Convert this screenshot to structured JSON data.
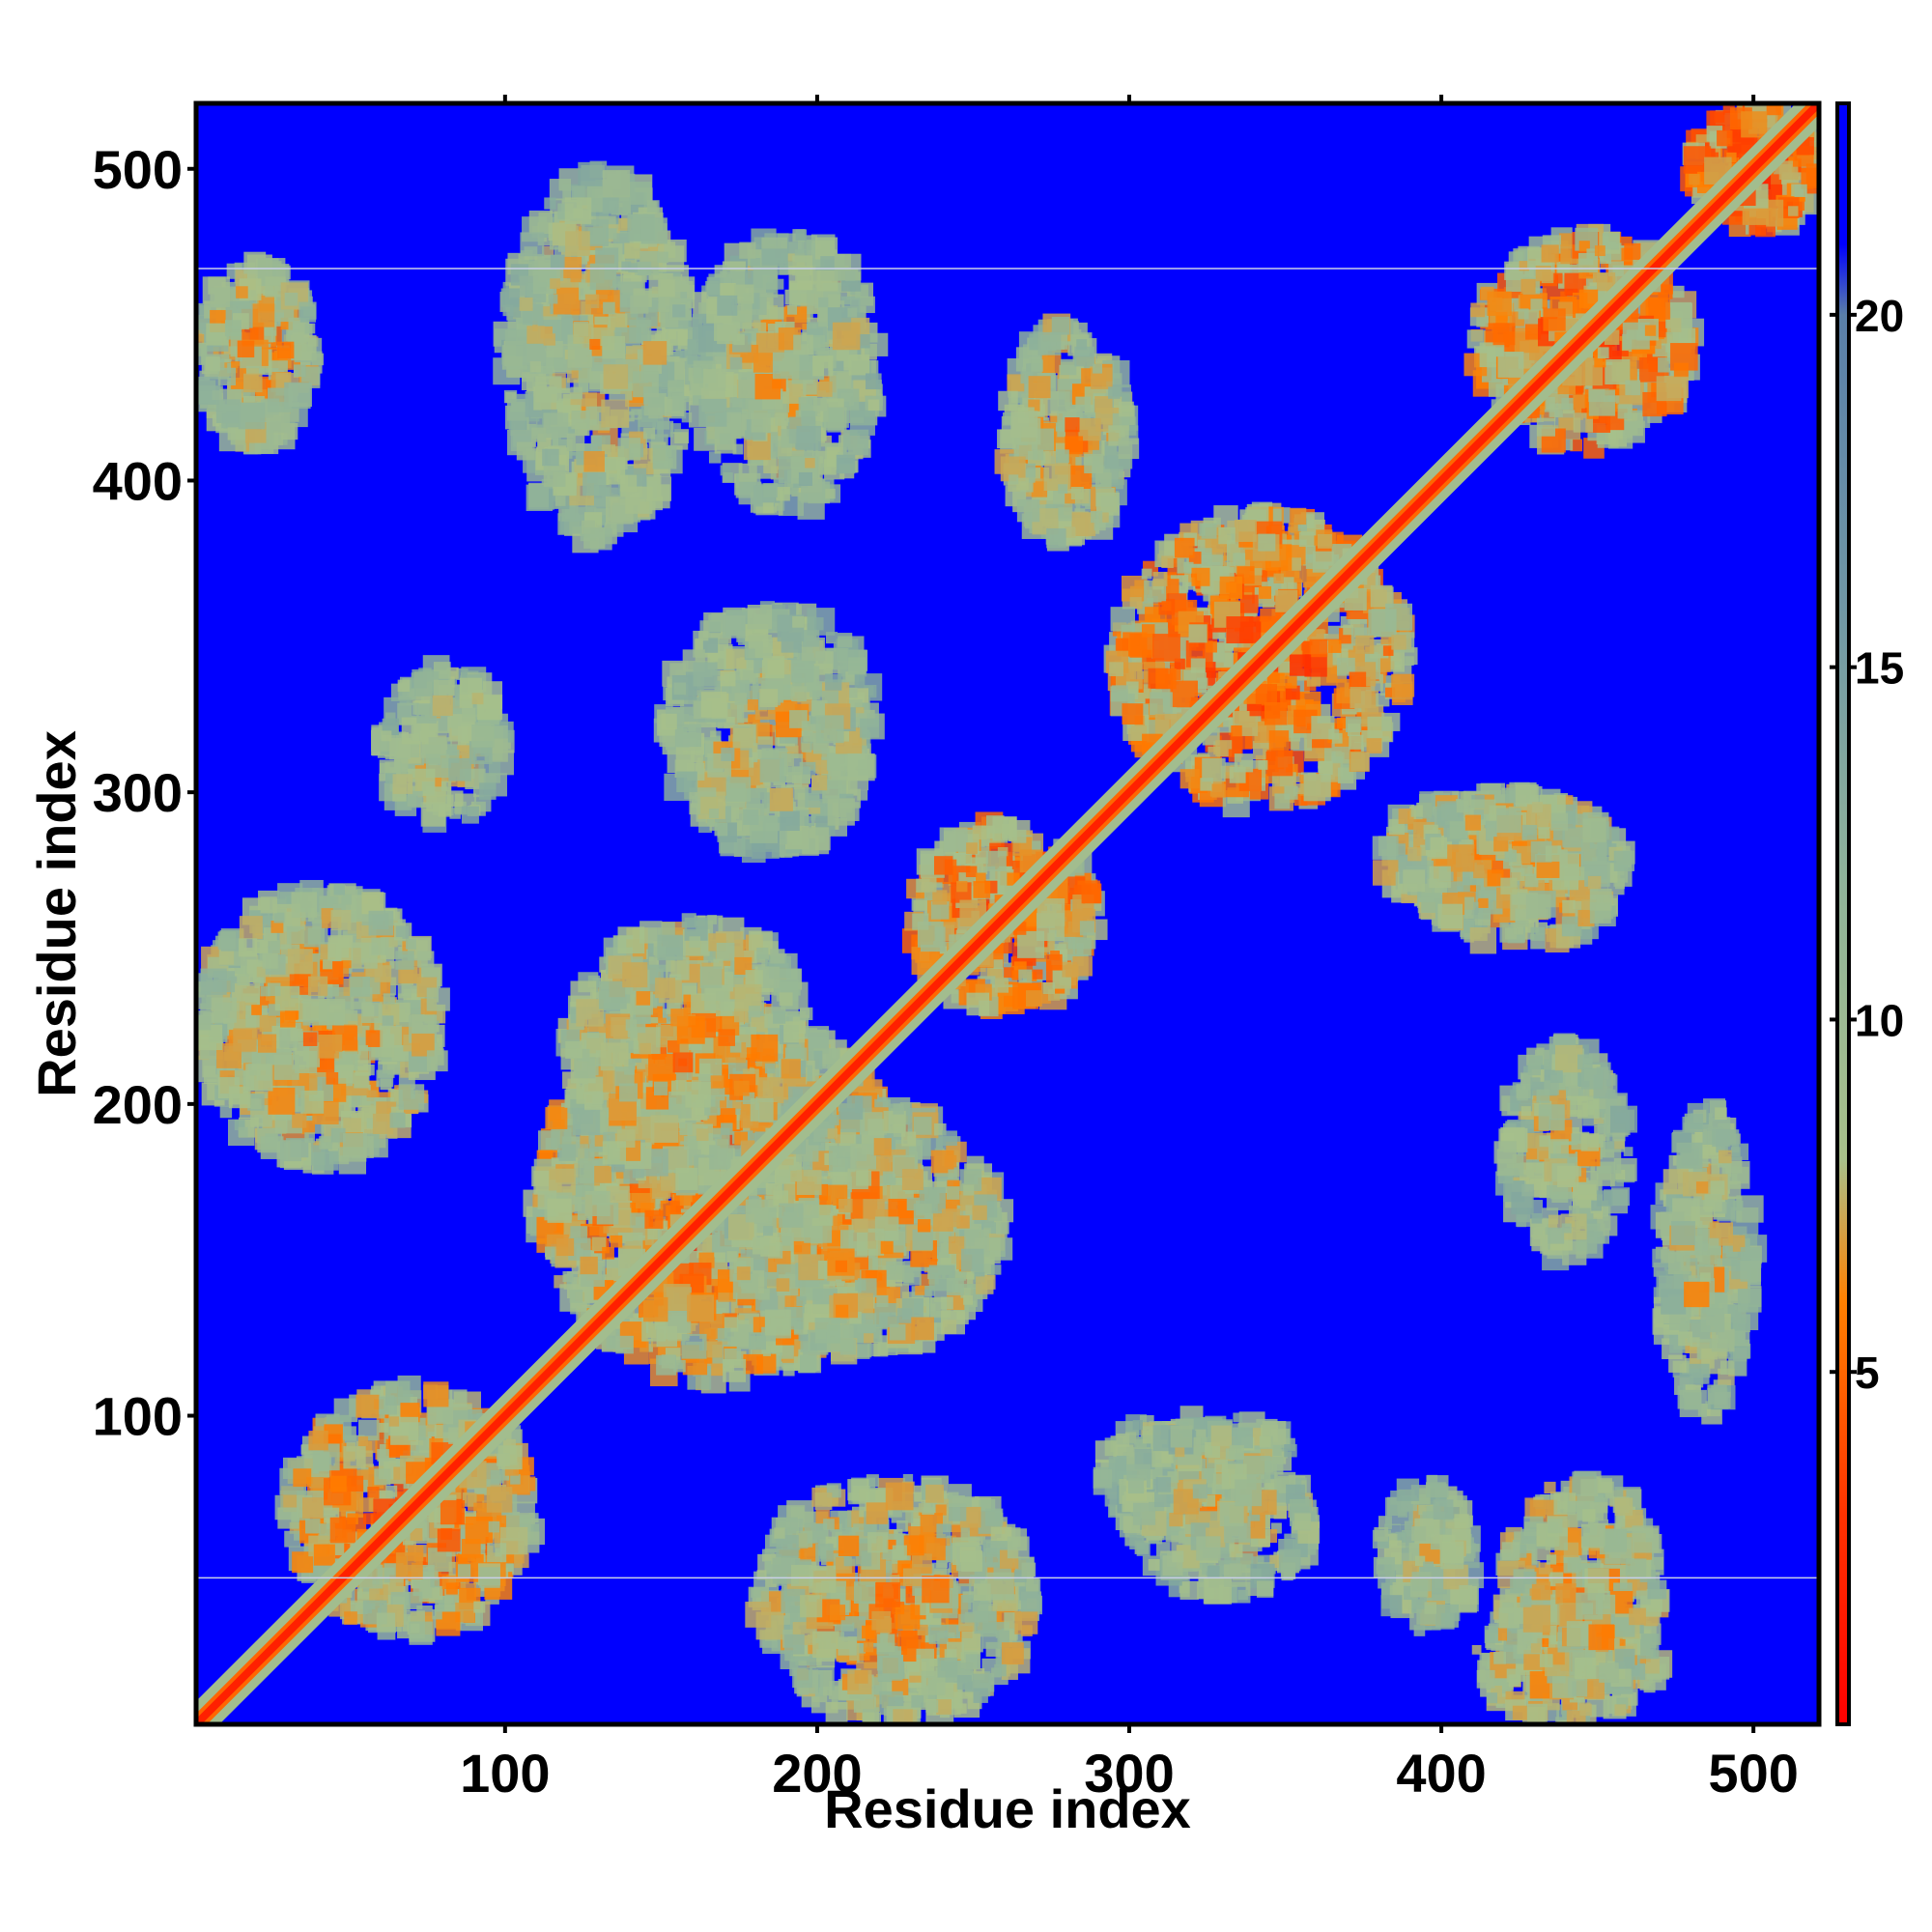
{
  "chart_data": {
    "type": "heatmap",
    "title": "",
    "xlabel": "Residue index",
    "ylabel": "Residue index",
    "xlim": [
      1,
      521
    ],
    "ylim": [
      1,
      521
    ],
    "x_ticks": [
      100,
      200,
      300,
      400,
      500
    ],
    "y_ticks": [
      100,
      200,
      300,
      400,
      500
    ],
    "colorbar": {
      "ticks": [
        5,
        10,
        15,
        20
      ],
      "range": [
        0,
        23
      ],
      "colors": [
        {
          "value": 0,
          "color": "#ff0000"
        },
        {
          "value": 3,
          "color": "#ff3300"
        },
        {
          "value": 6,
          "color": "#ff8000"
        },
        {
          "value": 8,
          "color": "#a8c08a"
        },
        {
          "value": 12,
          "color": "#8fb29a"
        },
        {
          "value": 16,
          "color": "#6f96a6"
        },
        {
          "value": 20,
          "color": "#5a7fa8"
        },
        {
          "value": 21,
          "color": "#0000ff"
        },
        {
          "value": 23,
          "color": "#0000ff"
        }
      ]
    },
    "background_color": "#0000ff",
    "diagonal_color": "#ff2000",
    "contact_regions": [
      {
        "x": [
          30,
          110
        ],
        "y": [
          30,
          110
        ],
        "value": 9
      },
      {
        "x": [
          110,
          230
        ],
        "y": [
          110,
          230
        ],
        "value": 9
      },
      {
        "x": [
          230,
          290
        ],
        "y": [
          230,
          290
        ],
        "value": 8
      },
      {
        "x": [
          295,
          390
        ],
        "y": [
          295,
          390
        ],
        "value": 8
      },
      {
        "x": [
          410,
          480
        ],
        "y": [
          410,
          480
        ],
        "value": 8
      },
      {
        "x": [
          480,
          521
        ],
        "y": [
          480,
          521
        ],
        "value": 7
      },
      {
        "x": [
          120,
          200
        ],
        "y": [
          170,
          260
        ],
        "value": 10
      },
      {
        "x": [
          170,
          260
        ],
        "y": [
          120,
          200
        ],
        "value": 10
      },
      {
        "x": [
          1,
          80
        ],
        "y": [
          180,
          270
        ],
        "value": 10
      },
      {
        "x": [
          180,
          270
        ],
        "y": [
          1,
          80
        ],
        "value": 10
      },
      {
        "x": [
          1,
          40
        ],
        "y": [
          410,
          470
        ],
        "value": 10
      },
      {
        "x": [
          410,
          470
        ],
        "y": [
          1,
          40
        ],
        "value": 10
      },
      {
        "x": [
          60,
          100
        ],
        "y": [
          290,
          340
        ],
        "value": 11
      },
      {
        "x": [
          290,
          340
        ],
        "y": [
          60,
          100
        ],
        "value": 11
      },
      {
        "x": [
          260,
          300
        ],
        "y": [
          380,
          450
        ],
        "value": 10
      },
      {
        "x": [
          380,
          450
        ],
        "y": [
          260,
          300
        ],
        "value": 10
      },
      {
        "x": [
          390,
          460
        ],
        "y": [
          250,
          300
        ],
        "value": 10
      },
      {
        "x": [
          420,
          460
        ],
        "y": [
          150,
          220
        ],
        "value": 11
      },
      {
        "x": [
          470,
          500
        ],
        "y": [
          100,
          200
        ],
        "value": 11
      },
      {
        "x": [
          380,
          410
        ],
        "y": [
          30,
          80
        ],
        "value": 11
      },
      {
        "x": [
          420,
          470
        ],
        "y": [
          10,
          80
        ],
        "value": 10
      },
      {
        "x": [
          300,
          360
        ],
        "y": [
          40,
          100
        ],
        "value": 11
      },
      {
        "x": [
          150,
          220
        ],
        "y": [
          280,
          360
        ],
        "value": 11
      },
      {
        "x": [
          100,
          160
        ],
        "y": [
          380,
          500
        ],
        "value": 11
      },
      {
        "x": [
          160,
          220
        ],
        "y": [
          390,
          480
        ],
        "value": 11
      }
    ]
  },
  "markers": {
    "horizontal_lines_y": [
      48,
      468
    ]
  }
}
